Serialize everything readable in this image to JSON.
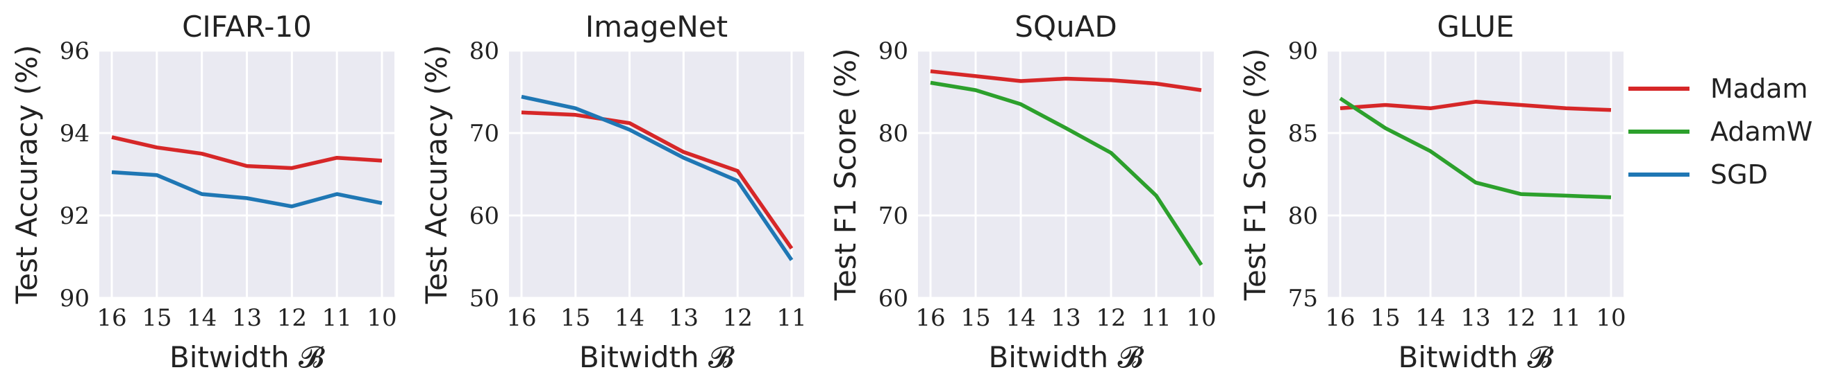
{
  "chart_data": [
    {
      "type": "line",
      "title": "CIFAR-10",
      "xlabel": "Bitwidth 𝓑",
      "ylabel": "Test Accuracy (%)",
      "x": [
        16,
        15,
        14,
        13,
        12,
        11,
        10
      ],
      "ylim": [
        90,
        96
      ],
      "yticks": [
        90,
        92,
        94,
        96
      ],
      "series": [
        {
          "name": "Madam",
          "color": "#d62728",
          "values": [
            93.9,
            93.65,
            93.5,
            93.2,
            93.15,
            93.4,
            93.33
          ]
        },
        {
          "name": "SGD",
          "color": "#1f77b4",
          "values": [
            93.05,
            92.98,
            92.52,
            92.42,
            92.22,
            92.52,
            92.3
          ]
        }
      ]
    },
    {
      "type": "line",
      "title": "ImageNet",
      "xlabel": "Bitwidth 𝓑",
      "ylabel": "Test Accuracy (%)",
      "x": [
        16,
        15,
        14,
        13,
        12,
        11
      ],
      "ylim": [
        50,
        80
      ],
      "yticks": [
        50,
        60,
        70,
        80
      ],
      "series": [
        {
          "name": "Madam",
          "color": "#d62728",
          "values": [
            72.5,
            72.2,
            71.2,
            67.7,
            65.4,
            56.0
          ]
        },
        {
          "name": "SGD",
          "color": "#1f77b4",
          "values": [
            74.4,
            73.0,
            70.4,
            67.0,
            64.2,
            54.6
          ]
        }
      ]
    },
    {
      "type": "line",
      "title": "SQuAD",
      "xlabel": "Bitwidth 𝓑",
      "ylabel": "Test F1 Score (%)",
      "x": [
        16,
        15,
        14,
        13,
        12,
        11,
        10
      ],
      "ylim": [
        60,
        90
      ],
      "yticks": [
        60,
        70,
        80,
        90
      ],
      "series": [
        {
          "name": "Madam",
          "color": "#d62728",
          "values": [
            87.5,
            86.9,
            86.3,
            86.6,
            86.4,
            86.0,
            85.2
          ]
        },
        {
          "name": "AdamW",
          "color": "#2ca02c",
          "values": [
            86.1,
            85.2,
            83.5,
            80.6,
            77.6,
            72.4,
            64.0
          ]
        }
      ]
    },
    {
      "type": "line",
      "title": "GLUE",
      "xlabel": "Bitwidth 𝓑",
      "ylabel": "Test F1 Score (%)",
      "x": [
        16,
        15,
        14,
        13,
        12,
        11,
        10
      ],
      "ylim": [
        75,
        90
      ],
      "yticks": [
        75,
        80,
        85,
        90
      ],
      "series": [
        {
          "name": "Madam",
          "color": "#d62728",
          "values": [
            86.5,
            86.7,
            86.5,
            86.9,
            86.7,
            86.5,
            86.4
          ]
        },
        {
          "name": "AdamW",
          "color": "#2ca02c",
          "values": [
            87.1,
            85.3,
            83.9,
            82.0,
            81.3,
            81.2,
            81.1
          ]
        }
      ]
    }
  ],
  "legend": {
    "placement": "right",
    "entries": [
      {
        "name": "Madam",
        "color": "#d62728"
      },
      {
        "name": "AdamW",
        "color": "#2ca02c"
      },
      {
        "name": "SGD",
        "color": "#1f77b4"
      }
    ]
  }
}
